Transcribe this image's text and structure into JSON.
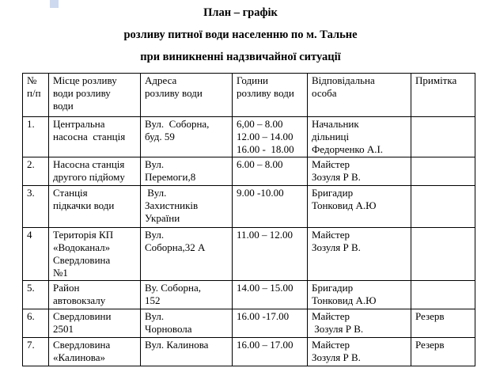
{
  "artifact": {
    "color": "#cdd9ee"
  },
  "title": {
    "line1": "План – графік",
    "line2": "розливу питної води населенню по м. Тальне",
    "line3": "при виникненні надзвичайної ситуації"
  },
  "table": {
    "headers": {
      "num": "№\nп/п",
      "place": "Місце розливу\nводи розливу\nводи",
      "address": "Адреса\nрозливу води",
      "hours": "Години\nрозливу води",
      "person": "Відповідальна\nособа",
      "note": "Примітка"
    },
    "rows": [
      {
        "num": "1.",
        "place": "Центральна\nнасосна  станція",
        "address": "Вул.  Соборна,\nбуд. 59",
        "hours": "6,00 – 8.00\n12.00 – 14.00\n16.00 -  18.00",
        "person": "Начальник\nдільниці\nФедорченко А.І.",
        "note": ""
      },
      {
        "num": "2.",
        "place": "Насосна станція\nдругого підйому",
        "address": "Вул.\nПеремоги,8",
        "hours": "6.00 – 8.00",
        "person": "Майстер\nЗозуля Р В.",
        "note": ""
      },
      {
        "num": "3.",
        "place": "Станція\nпідкачки води",
        "address": " Вул.\nЗахистників\nУкраїни",
        "hours": "9.00 -10.00",
        "person": "Бригадир\nТонковид А.Ю",
        "note": ""
      },
      {
        "num": "4",
        "place": "Територія КП\n«Водоканал»\nСвердловина\n№1",
        "address": "Вул.\nСоборна,32 А",
        "hours": "11.00 – 12.00",
        "person": "Майстер\nЗозуля Р В.",
        "note": ""
      },
      {
        "num": "5.",
        "place": "Район\nавтовокзалу",
        "address": "Ву. Соборна,\n152",
        "hours": "14.00 – 15.00",
        "person": "Бригадир\nТонковид А.Ю",
        "note": ""
      },
      {
        "num": "6.",
        "place": "Свердловини\n2501",
        "address": "Вул.\nЧорновола",
        "hours": "16.00 -17.00",
        "person": "Майстер\n Зозуля Р В.",
        "note": "Резерв"
      },
      {
        "num": "7.",
        "place": "Свердловина\n«Калинова»",
        "address": "Вул. Калинова",
        "hours": "16.00 – 17.00",
        "person": "Майстер\nЗозуля Р В.",
        "note": "Резерв"
      }
    ]
  }
}
